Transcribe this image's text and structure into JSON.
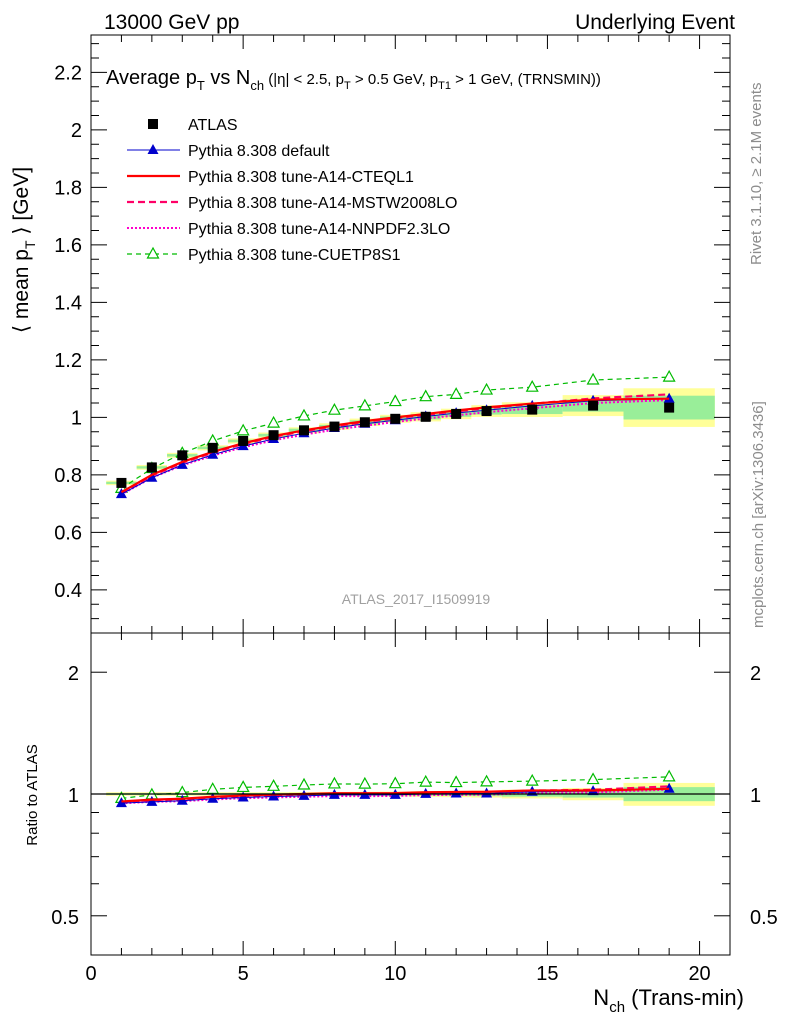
{
  "header": {
    "left": "13000 GeV pp",
    "right": "Underlying Event"
  },
  "plot_title": {
    "main": "Average p",
    "sub1": "T",
    "mid": " vs N",
    "sub2": "ch",
    "cond_a": " (|η| < 2.5, p",
    "sub3": "T",
    "cond_b": " > 0.5 GeV, p",
    "sub4": "T1",
    "cond_c": " > 1 GeV, (TRNSMIN))"
  },
  "ylabel_main": {
    "pre": "⟨ mean p",
    "sub": "T",
    "post": " ⟩ [GeV]"
  },
  "ylabel_ratio": "Ratio to ATLAS",
  "xlabel": {
    "pre": "N",
    "sub": "ch",
    "post": " (Trans-min)"
  },
  "side_text": {
    "rivet": "Rivet 3.1.10, ≥ 2.1M events",
    "mcplots": "mcplots.cern.ch [arXiv:1306.3436]"
  },
  "analysis_id": "ATLAS_2017_I1509919",
  "colors": {
    "data": "#000000",
    "default": "#0000cc",
    "cteq": "#ff0000",
    "mstw": "#ff0066",
    "nnpdf": "#ff00cc",
    "cuetp": "#00bb00",
    "band_yellow": "#ffff99",
    "band_green": "#99ee99"
  },
  "chart_data": {
    "type": "line",
    "xlim": [
      0,
      21
    ],
    "main_ylim": [
      0.25,
      2.33
    ],
    "ratio_ylim": [
      0.4,
      2.5
    ],
    "ratio_scale": "log",
    "xticks": [
      0,
      5,
      10,
      15,
      20
    ],
    "main_yticks": [
      0.4,
      0.6,
      0.8,
      1,
      1.2,
      1.4,
      1.6,
      1.8,
      2,
      2.2
    ],
    "ratio_yticks": [
      0.5,
      1,
      2
    ],
    "x": [
      1,
      2,
      3,
      4,
      5,
      6,
      7,
      8,
      9,
      10,
      11,
      12,
      13,
      14.5,
      16.5,
      19
    ],
    "band": {
      "x_edges": [
        [
          0.5,
          1.5
        ],
        [
          1.5,
          2.5
        ],
        [
          2.5,
          3.5
        ],
        [
          3.5,
          4.5
        ],
        [
          4.5,
          5.5
        ],
        [
          5.5,
          6.5
        ],
        [
          6.5,
          7.5
        ],
        [
          7.5,
          8.5
        ],
        [
          8.5,
          9.5
        ],
        [
          9.5,
          10.5
        ],
        [
          10.5,
          11.5
        ],
        [
          11.5,
          12.5
        ],
        [
          12.5,
          13.5
        ],
        [
          13.5,
          15.5
        ],
        [
          15.5,
          17.5
        ],
        [
          17.5,
          20.5
        ]
      ],
      "stat": [
        0.005,
        0.005,
        0.005,
        0.005,
        0.005,
        0.005,
        0.006,
        0.006,
        0.007,
        0.008,
        0.009,
        0.01,
        0.012,
        0.015,
        0.02,
        0.04
      ],
      "total": [
        0.01,
        0.01,
        0.01,
        0.01,
        0.01,
        0.01,
        0.011,
        0.012,
        0.013,
        0.014,
        0.016,
        0.018,
        0.02,
        0.025,
        0.035,
        0.065
      ]
    },
    "series": [
      {
        "key": "data",
        "name": "ATLAS",
        "style": "marker",
        "values": [
          0.772,
          0.826,
          0.868,
          0.894,
          0.918,
          0.938,
          0.955,
          0.968,
          0.983,
          0.995,
          1.002,
          1.012,
          1.022,
          1.027,
          1.041,
          1.034
        ]
      },
      {
        "key": "default",
        "name": "Pythia 8.308 default",
        "style": "solid-triangle",
        "values": [
          0.733,
          0.79,
          0.835,
          0.87,
          0.9,
          0.925,
          0.945,
          0.963,
          0.978,
          0.99,
          1.003,
          1.015,
          1.025,
          1.04,
          1.058,
          1.065
        ]
      },
      {
        "key": "cteq",
        "name": "Pythia 8.308 tune-A14-CTEQL1",
        "style": "solid-thick",
        "values": [
          0.74,
          0.8,
          0.845,
          0.88,
          0.91,
          0.935,
          0.955,
          0.972,
          0.987,
          1,
          1.012,
          1.024,
          1.035,
          1.048,
          1.062,
          1.065
        ]
      },
      {
        "key": "mstw",
        "name": "Pythia 8.308 tune-A14-MSTW2008LO",
        "style": "dashed",
        "values": [
          0.738,
          0.797,
          0.842,
          0.877,
          0.907,
          0.932,
          0.952,
          0.969,
          0.984,
          0.997,
          1.009,
          1.021,
          1.032,
          1.047,
          1.066,
          1.08
        ]
      },
      {
        "key": "nnpdf",
        "name": "Pythia 8.308 tune-A14-NNPDF2.3LO",
        "style": "dotted",
        "values": [
          0.732,
          0.79,
          0.833,
          0.867,
          0.896,
          0.92,
          0.94,
          0.957,
          0.971,
          0.984,
          0.996,
          1.007,
          1.018,
          1.032,
          1.05,
          1.06
        ]
      },
      {
        "key": "cuetp",
        "name": "Pythia 8.308 tune-CUETP8S1",
        "style": "dashed-open-triangle",
        "values": [
          0.753,
          0.822,
          0.875,
          0.918,
          0.953,
          0.98,
          1.005,
          1.025,
          1.04,
          1.055,
          1.072,
          1.08,
          1.095,
          1.105,
          1.13,
          1.14
        ]
      }
    ]
  }
}
